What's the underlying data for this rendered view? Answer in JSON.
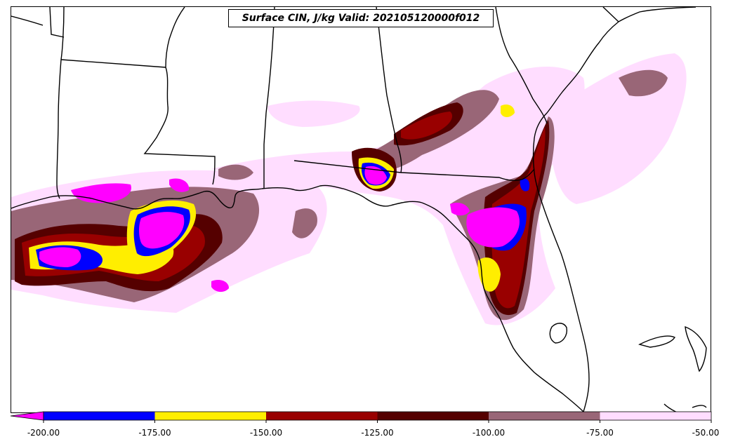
{
  "title": "Surface CIN, J/kg Valid: 202105120000f012",
  "colorbar": {
    "extend": "min",
    "colors": [
      "#ff00ff",
      "#0000ff",
      "#ffee00",
      "#990000",
      "#550000",
      "#996677",
      "#ffddff"
    ],
    "levels": [
      -200,
      -175,
      -150,
      -125,
      -100,
      -75,
      -50
    ],
    "tick_labels": [
      "-200.00",
      "-175.00",
      "-150.00",
      "-125.00",
      "-100.00",
      "-75.00",
      "-50.00"
    ]
  },
  "map": {
    "region": "Gulf of Mexico coast / Florida",
    "background": "#ffffff",
    "line_color": "#000000"
  }
}
